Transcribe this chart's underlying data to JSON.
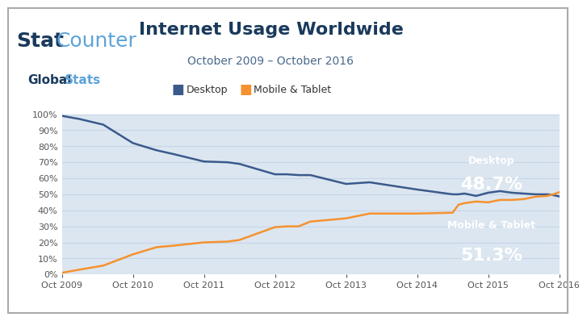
{
  "title": "Internet Usage Worldwide",
  "subtitle": "October 2009 – October 2016",
  "legend_labels": [
    "Desktop",
    "Mobile & Tablet"
  ],
  "legend_colors": [
    "#3a5a8c",
    "#f5922f"
  ],
  "background_color": "#ffffff",
  "plot_bg_color": "#dce6f0",
  "x_labels": [
    "Oct 2009",
    "Oct 2010",
    "Oct 2011",
    "Oct 2012",
    "Oct 2013",
    "Oct 2014",
    "Oct 2015",
    "Oct 2016"
  ],
  "x_positions": [
    0,
    12,
    24,
    36,
    48,
    60,
    72,
    84
  ],
  "desktop_values": [
    99.0,
    97.0,
    93.5,
    82.0,
    77.5,
    75.0,
    70.5,
    70.0,
    69.0,
    62.5,
    62.5,
    62.0,
    62.0,
    56.5,
    57.0,
    57.5,
    53.0,
    50.0,
    50.0,
    50.5,
    49.0,
    51.0,
    52.0,
    51.0,
    50.5,
    50.0,
    50.0,
    49.5,
    48.7
  ],
  "mobile_values": [
    1.0,
    3.0,
    5.5,
    12.5,
    17.0,
    18.0,
    20.0,
    20.5,
    21.5,
    29.5,
    30.0,
    30.0,
    33.0,
    35.0,
    36.5,
    38.0,
    38.0,
    38.5,
    43.5,
    44.5,
    45.5,
    45.0,
    46.5,
    46.5,
    47.0,
    48.5,
    49.0,
    50.0,
    51.3
  ],
  "desktop_x": [
    0,
    3,
    7,
    12,
    16,
    19,
    24,
    28,
    30,
    36,
    38,
    40,
    42,
    48,
    50,
    52,
    60,
    66,
    67,
    68,
    70,
    72,
    74,
    76,
    78,
    80,
    82,
    83,
    84
  ],
  "mobile_x": [
    0,
    3,
    7,
    12,
    16,
    19,
    24,
    28,
    30,
    36,
    38,
    40,
    42,
    48,
    50,
    52,
    60,
    66,
    67,
    68,
    70,
    72,
    74,
    76,
    78,
    80,
    82,
    83,
    84
  ],
  "desktop_color": "#3a5a8c",
  "mobile_color": "#f5922f",
  "desktop_label_color": "#3a5a8c",
  "mobile_label_bg": "#f5922f",
  "desktop_label_bg": "#3a5a8c",
  "ylabel_ticks": [
    "0%",
    "10%",
    "20%",
    "30%",
    "40%",
    "50%",
    "60%",
    "70%",
    "80%",
    "90%",
    "100%"
  ],
  "ylabel_vals": [
    0,
    10,
    20,
    30,
    40,
    50,
    60,
    70,
    80,
    90,
    100
  ],
  "grid_color": "#c5d4e8",
  "title_color": "#1a3a5c",
  "subtitle_color": "#4a6a8c"
}
